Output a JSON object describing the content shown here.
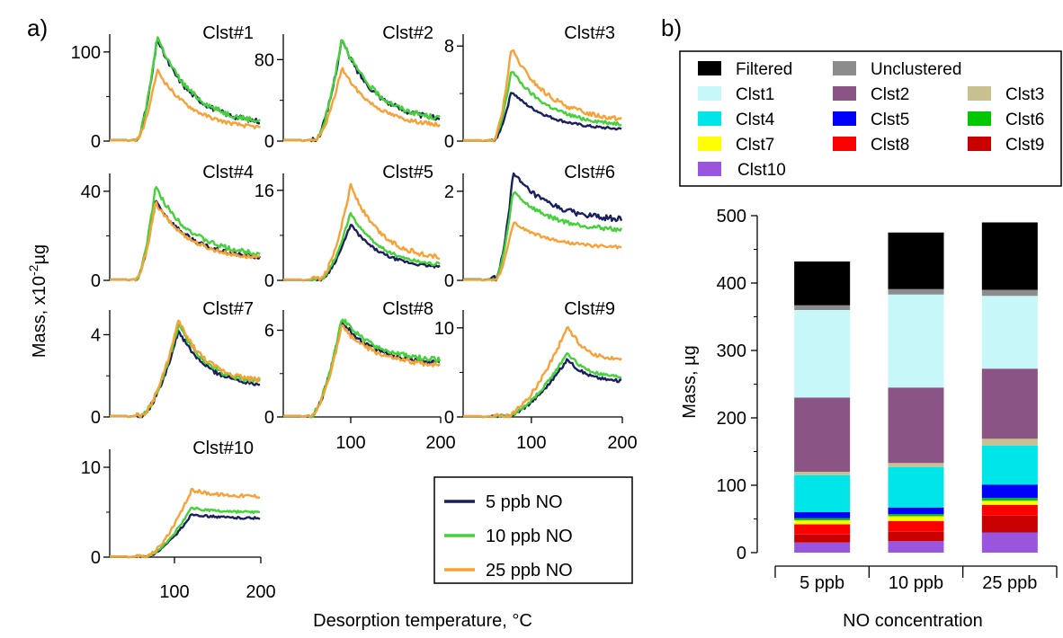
{
  "panel_labels": {
    "a": "a)",
    "b": "b)"
  },
  "left_xlabel": "Desorption temperature, °C",
  "left_ylabel_main": "Mass, x10",
  "left_ylabel_exp": "-2",
  "left_ylabel_unit": "µg",
  "right_xlabel": "NO concentration",
  "right_ylabel": "Mass, µg",
  "legend_left": [
    {
      "label": "5 ppb NO",
      "color": "#1b1f5c"
    },
    {
      "label": "10 ppb NO",
      "color": "#44d13a"
    },
    {
      "label": "25 ppb NO",
      "color": "#f7a136"
    }
  ],
  "legend_right": [
    {
      "label": "Filtered",
      "color": "#000000"
    },
    {
      "label": "Unclustered",
      "color": "#8c8c8c"
    },
    {
      "label": "Clst1",
      "color": "#c8f7fa"
    },
    {
      "label": "Clst2",
      "color": "#8a5585"
    },
    {
      "label": "Clst3",
      "color": "#c8c08e"
    },
    {
      "label": "Clst4",
      "color": "#00e5e8"
    },
    {
      "label": "Clst5",
      "color": "#0000ff"
    },
    {
      "label": "Clst6",
      "color": "#00c800"
    },
    {
      "label": "Clst7",
      "color": "#ffff00"
    },
    {
      "label": "Clst8",
      "color": "#ff0000"
    },
    {
      "label": "Clst9",
      "color": "#c80000"
    },
    {
      "label": "Clst10",
      "color": "#9955dd"
    }
  ],
  "chart_data": [
    {
      "type": "line",
      "panel": "a",
      "xlabel": "Desorption temperature, °C",
      "ylabel": "Mass, x10^-2 µg",
      "xlim": [
        25,
        200
      ],
      "x_ticks": [
        100,
        200
      ],
      "series_names": [
        "5 ppb NO",
        "10 ppb NO",
        "25 ppb NO"
      ],
      "subplots": [
        {
          "title": "Clst#1",
          "ylim": [
            0,
            120
          ],
          "yticks": [
            0,
            100
          ],
          "shape": {
            "peak": 80,
            "rise": 55,
            "tail": 0.15
          },
          "series": [
            {
              "name": "5 ppb NO",
              "peak_value": 115
            },
            {
              "name": "10 ppb NO",
              "peak_value": 118
            },
            {
              "name": "25 ppb NO",
              "peak_value": 80
            }
          ]
        },
        {
          "title": "Clst#2",
          "ylim": [
            0,
            105
          ],
          "yticks": [
            0,
            80
          ],
          "shape": {
            "peak": 90,
            "rise": 60,
            "tail": 0.18
          },
          "series": [
            {
              "name": "5 ppb NO",
              "peak_value": 100
            },
            {
              "name": "10 ppb NO",
              "peak_value": 102
            },
            {
              "name": "25 ppb NO",
              "peak_value": 72
            }
          ]
        },
        {
          "title": "Clst#3",
          "ylim": [
            0,
            9
          ],
          "yticks": [
            0,
            8
          ],
          "shape": {
            "peak": 78,
            "rise": 58,
            "tail": 0.2
          },
          "series": [
            {
              "name": "5 ppb NO",
              "peak_value": 4.2
            },
            {
              "name": "10 ppb NO",
              "peak_value": 6.0
            },
            {
              "name": "25 ppb NO",
              "peak_value": 7.8
            }
          ]
        },
        {
          "title": "Clst#4",
          "ylim": [
            0,
            48
          ],
          "yticks": [
            0,
            40
          ],
          "shape": {
            "peak": 78,
            "rise": 55,
            "tail": 0.25
          },
          "series": [
            {
              "name": "5 ppb NO",
              "peak_value": 36
            },
            {
              "name": "10 ppb NO",
              "peak_value": 42
            },
            {
              "name": "25 ppb NO",
              "peak_value": 35
            }
          ]
        },
        {
          "title": "Clst#5",
          "ylim": [
            0,
            19
          ],
          "yticks": [
            0,
            16
          ],
          "shape": {
            "peak": 100,
            "rise": 65,
            "tail": 0.2
          },
          "series": [
            {
              "name": "5 ppb NO",
              "peak_value": 10
            },
            {
              "name": "10 ppb NO",
              "peak_value": 12
            },
            {
              "name": "25 ppb NO",
              "peak_value": 17
            }
          ]
        },
        {
          "title": "Clst#6",
          "ylim": [
            0,
            2.4
          ],
          "yticks": [
            0,
            2
          ],
          "shape": {
            "peak": 80,
            "rise": 60,
            "tail": 0.55
          },
          "series": [
            {
              "name": "5 ppb NO",
              "peak_value": 2.4
            },
            {
              "name": "10 ppb NO",
              "peak_value": 2.0
            },
            {
              "name": "25 ppb NO",
              "peak_value": 1.3
            }
          ]
        },
        {
          "title": "Clst#7",
          "ylim": [
            0,
            5.2
          ],
          "yticks": [
            0,
            4
          ],
          "shape": {
            "peak": 105,
            "rise": 60,
            "tail": 0.35
          },
          "series": [
            {
              "name": "5 ppb NO",
              "peak_value": 4.2
            },
            {
              "name": "10 ppb NO",
              "peak_value": 4.5
            },
            {
              "name": "25 ppb NO",
              "peak_value": 4.7
            }
          ]
        },
        {
          "title": "Clst#8",
          "ylim": [
            0,
            7.4
          ],
          "yticks": [
            0,
            6
          ],
          "shape": {
            "peak": 90,
            "rise": 55,
            "tail": 0.55
          },
          "series": [
            {
              "name": "5 ppb NO",
              "peak_value": 6.6
            },
            {
              "name": "10 ppb NO",
              "peak_value": 6.9
            },
            {
              "name": "25 ppb NO",
              "peak_value": 6.3
            }
          ]
        },
        {
          "title": "Clst#9",
          "ylim": [
            0,
            12
          ],
          "yticks": [
            0,
            10
          ],
          "shape": {
            "peak": 140,
            "rise": 70,
            "tail": 0.6
          },
          "series": [
            {
              "name": "5 ppb NO",
              "peak_value": 6.5
            },
            {
              "name": "10 ppb NO",
              "peak_value": 7.2
            },
            {
              "name": "25 ppb NO",
              "peak_value": 10.2
            }
          ]
        },
        {
          "title": "Clst#10",
          "ylim": [
            0,
            12
          ],
          "yticks": [
            0,
            10
          ],
          "shape": {
            "peak": 120,
            "rise": 65,
            "tail": 0.9
          },
          "series": [
            {
              "name": "5 ppb NO",
              "peak_value": 4.8
            },
            {
              "name": "10 ppb NO",
              "peak_value": 5.5
            },
            {
              "name": "25 ppb NO",
              "peak_value": 7.5
            }
          ]
        }
      ]
    },
    {
      "type": "bar",
      "stacked": true,
      "panel": "b",
      "xlabel": "NO concentration",
      "ylabel": "Mass, µg",
      "ylim": [
        0,
        500
      ],
      "yticks": [
        0,
        100,
        200,
        300,
        400,
        500
      ],
      "categories": [
        "5 ppb",
        "10 ppb",
        "25 ppb"
      ],
      "series": [
        {
          "name": "Clst10",
          "values": [
            15,
            17,
            30
          ]
        },
        {
          "name": "Clst9",
          "values": [
            12,
            14,
            25
          ]
        },
        {
          "name": "Clst8",
          "values": [
            15,
            16,
            16
          ]
        },
        {
          "name": "Clst7",
          "values": [
            6,
            7,
            6
          ]
        },
        {
          "name": "Clst6",
          "values": [
            3,
            3,
            4
          ]
        },
        {
          "name": "Clst5",
          "values": [
            9,
            10,
            20
          ]
        },
        {
          "name": "Clst4",
          "values": [
            55,
            60,
            58
          ]
        },
        {
          "name": "Clst3",
          "values": [
            5,
            6,
            10
          ]
        },
        {
          "name": "Clst2",
          "values": [
            110,
            112,
            104
          ]
        },
        {
          "name": "Clst1",
          "values": [
            130,
            138,
            108
          ]
        },
        {
          "name": "Unclustered",
          "values": [
            7,
            8,
            9
          ]
        },
        {
          "name": "Filtered",
          "values": [
            65,
            84,
            100
          ]
        }
      ]
    }
  ]
}
